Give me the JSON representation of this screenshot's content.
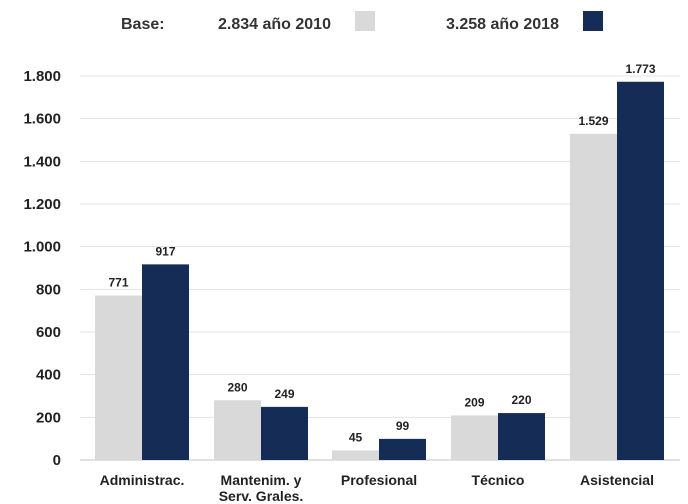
{
  "legend": {
    "base_label": "Base:",
    "series_2010_label": "2.834 año 2010",
    "series_2018_label": "3.258 año 2018"
  },
  "colors": {
    "series_2010": "#d9d9d9",
    "series_2018": "#152c57",
    "grid": "#e3e3e3",
    "text": "#222222"
  },
  "chart_data": {
    "type": "bar",
    "categories": [
      "Administrac.",
      "Mantenim. y Serv. Grales.",
      "Profesional",
      "Técnico",
      "Asistencial"
    ],
    "category_lines": [
      [
        "Administrac."
      ],
      [
        "Mantenim. y",
        "Serv. Grales."
      ],
      [
        "Profesional"
      ],
      [
        "Técnico"
      ],
      [
        "Asistencial"
      ]
    ],
    "series": [
      {
        "name": "2.834 año 2010",
        "values": [
          771,
          280,
          45,
          209,
          1529
        ],
        "labels": [
          "771",
          "280",
          "45",
          "209",
          "1.529"
        ]
      },
      {
        "name": "3.258 año 2018",
        "values": [
          917,
          249,
          99,
          220,
          1773
        ],
        "labels": [
          "917",
          "249",
          "99",
          "220",
          "1.773"
        ]
      }
    ],
    "ylim": [
      0,
      1800
    ],
    "yticks": [
      0,
      200,
      400,
      600,
      800,
      1000,
      1200,
      1400,
      1600,
      1800
    ],
    "ytick_labels": [
      "0",
      "200",
      "400",
      "600",
      "800",
      "1.000",
      "1.200",
      "1.400",
      "1.600",
      "1.800"
    ],
    "grid": true,
    "legend_position": "top"
  }
}
